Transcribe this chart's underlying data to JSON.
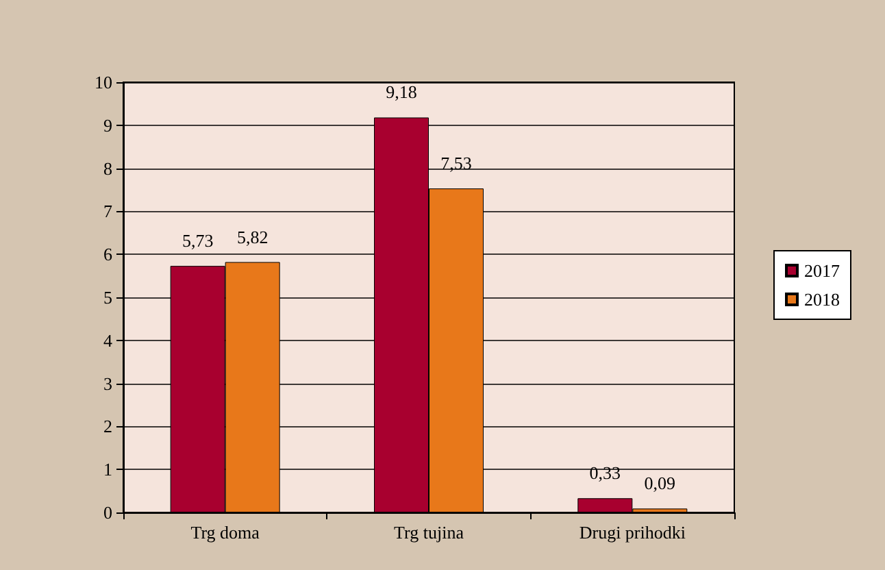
{
  "chart_data": {
    "type": "bar",
    "categories": [
      "Trg doma",
      "Trg tujina",
      "Drugi prihodki"
    ],
    "series": [
      {
        "name": "2017",
        "color": "#a8002f",
        "values": [
          5.73,
          9.18,
          0.33
        ],
        "value_labels": [
          "5,73",
          "9,18",
          "0,33"
        ]
      },
      {
        "name": "2018",
        "color": "#e8781a",
        "values": [
          5.82,
          7.53,
          0.09
        ],
        "value_labels": [
          "5,82",
          "7,53",
          "0,09"
        ]
      }
    ],
    "ylim": [
      0,
      10
    ],
    "yticks": [
      0,
      1,
      2,
      3,
      4,
      5,
      6,
      7,
      8,
      9,
      10
    ],
    "grid": "y",
    "legend": "right"
  }
}
